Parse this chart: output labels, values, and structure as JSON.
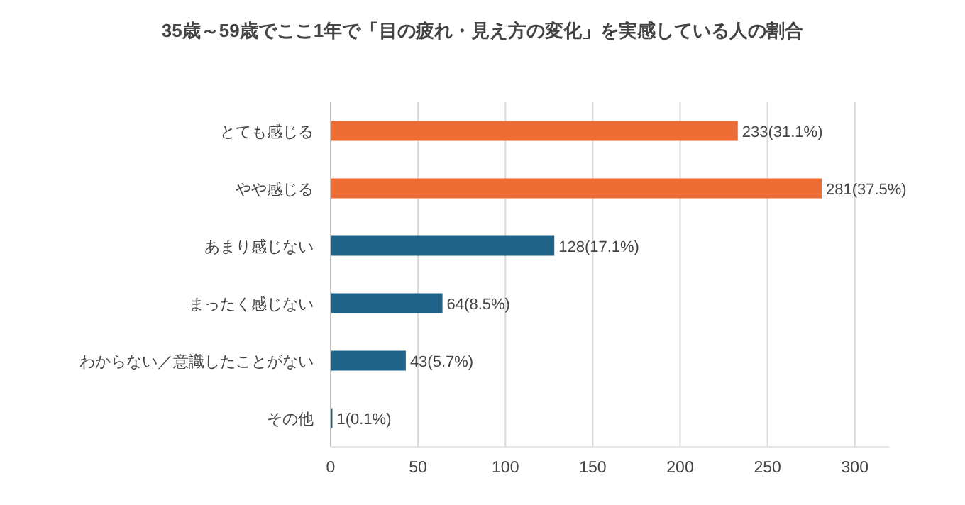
{
  "chart_data": {
    "type": "bar",
    "orientation": "horizontal",
    "title": "35歳～59歳でここ1年で「目の疲れ・見え方の変化」を実感している人の割合",
    "categories": [
      "とても感じる",
      "やや感じる",
      "あまり感じない",
      "まったく感じない",
      "わからない／意識したことがない",
      "その他"
    ],
    "values": [
      233,
      281,
      128,
      64,
      43,
      1
    ],
    "colors": [
      "#ed6d35",
      "#ed6d35",
      "#1f6389",
      "#1f6389",
      "#1f6389",
      "#1f6389"
    ],
    "value_labels": [
      "233(31.1%)",
      "281(37.5%)",
      "128(17.1%)",
      "64(8.5%)",
      "43(5.7%)",
      "1(0.1%)"
    ],
    "xlim": [
      0,
      320
    ],
    "xticks": [
      0,
      50,
      100,
      150,
      200,
      250,
      300
    ],
    "grid": "x"
  }
}
